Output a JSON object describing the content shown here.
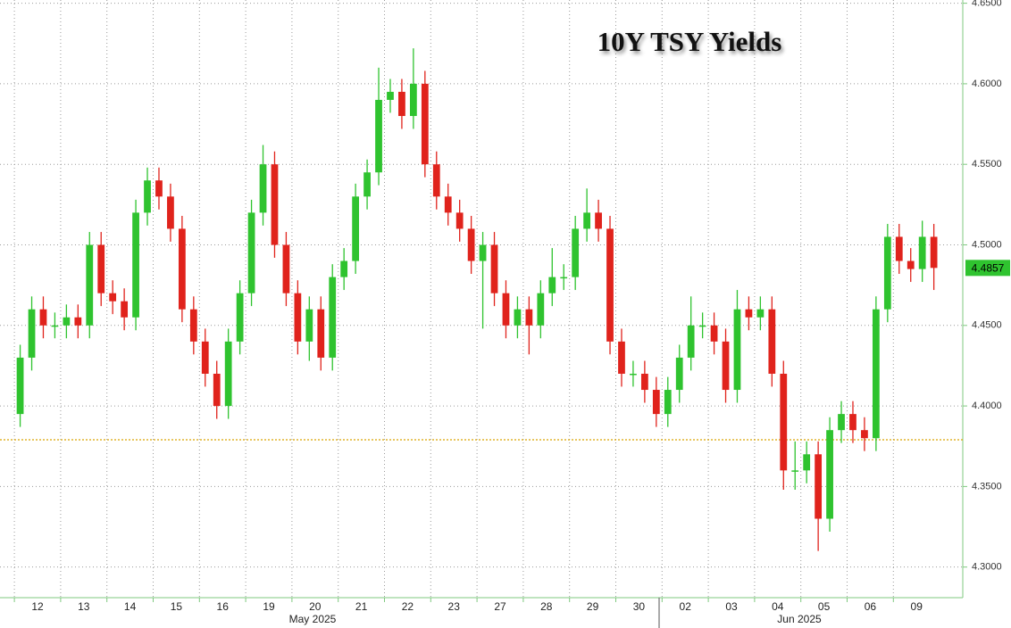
{
  "chart_data": {
    "type": "candlestick",
    "title": "10Y TSY Yields",
    "categories": [
      "12",
      "13",
      "14",
      "15",
      "16",
      "19",
      "20",
      "21",
      "22",
      "23",
      "27",
      "28",
      "29",
      "30",
      "02",
      "03",
      "04",
      "05",
      "06",
      "09"
    ],
    "month_labels": [
      "May 2025",
      "Jun 2025"
    ],
    "open": [
      4.395,
      4.43,
      4.46,
      4.45,
      4.45,
      4.455,
      4.45,
      4.5,
      4.47,
      4.465,
      4.455,
      4.52,
      4.54,
      4.53,
      4.51,
      4.46,
      4.44,
      4.42,
      4.4,
      4.44,
      4.47,
      4.52,
      4.55,
      4.5,
      4.47,
      4.44,
      4.46,
      4.43,
      4.48,
      4.49,
      4.53,
      4.545,
      4.59,
      4.595,
      4.58,
      4.6,
      4.55,
      4.53,
      4.52,
      4.51,
      4.49,
      4.5,
      4.47,
      4.45,
      4.46,
      4.45,
      4.47,
      4.48,
      4.48,
      4.51,
      4.52,
      4.51,
      4.44,
      4.42,
      4.42,
      4.41,
      4.395,
      4.41,
      4.43,
      4.45,
      4.45,
      4.44,
      4.41,
      4.46,
      4.455,
      4.46,
      4.42,
      4.36,
      4.36,
      4.37,
      4.33,
      4.385,
      4.395,
      4.385,
      4.38,
      4.46,
      4.505,
      4.49,
      4.485,
      4.505
    ],
    "high": [
      4.438,
      4.468,
      4.468,
      4.458,
      4.463,
      4.463,
      4.508,
      4.508,
      4.478,
      4.473,
      4.528,
      4.548,
      4.548,
      4.538,
      4.518,
      4.468,
      4.448,
      4.428,
      4.448,
      4.478,
      4.528,
      4.562,
      4.558,
      4.508,
      4.478,
      4.468,
      4.468,
      4.488,
      4.498,
      4.538,
      4.553,
      4.61,
      4.603,
      4.603,
      4.622,
      4.608,
      4.558,
      4.538,
      4.528,
      4.518,
      4.508,
      4.508,
      4.478,
      4.468,
      4.468,
      4.478,
      4.498,
      4.488,
      4.518,
      4.535,
      4.528,
      4.518,
      4.448,
      4.428,
      4.428,
      4.418,
      4.418,
      4.438,
      4.468,
      4.458,
      4.458,
      4.448,
      4.472,
      4.468,
      4.468,
      4.468,
      4.428,
      4.378,
      4.378,
      4.378,
      4.393,
      4.403,
      4.403,
      4.393,
      4.468,
      4.513,
      4.513,
      4.498,
      4.515,
      4.513
    ],
    "low": [
      4.387,
      4.422,
      4.442,
      4.442,
      4.442,
      4.442,
      4.442,
      4.462,
      4.457,
      4.447,
      4.447,
      4.512,
      4.522,
      4.502,
      4.452,
      4.432,
      4.412,
      4.392,
      4.392,
      4.432,
      4.462,
      4.512,
      4.492,
      4.462,
      4.432,
      4.428,
      4.422,
      4.422,
      4.472,
      4.482,
      4.522,
      4.537,
      4.582,
      4.572,
      4.572,
      4.542,
      4.522,
      4.512,
      4.502,
      4.482,
      4.448,
      4.462,
      4.442,
      4.442,
      4.432,
      4.442,
      4.462,
      4.472,
      4.472,
      4.502,
      4.502,
      4.432,
      4.412,
      4.412,
      4.402,
      4.387,
      4.387,
      4.402,
      4.422,
      4.442,
      4.432,
      4.402,
      4.402,
      4.447,
      4.447,
      4.412,
      4.348,
      4.348,
      4.352,
      4.31,
      4.322,
      4.377,
      4.377,
      4.372,
      4.372,
      4.452,
      4.482,
      4.477,
      4.477,
      4.472
    ],
    "close": [
      4.43,
      4.46,
      4.45,
      4.45,
      4.455,
      4.45,
      4.5,
      4.47,
      4.465,
      4.455,
      4.52,
      4.54,
      4.53,
      4.51,
      4.46,
      4.44,
      4.42,
      4.4,
      4.44,
      4.47,
      4.52,
      4.55,
      4.5,
      4.47,
      4.44,
      4.46,
      4.43,
      4.48,
      4.49,
      4.53,
      4.545,
      4.59,
      4.595,
      4.58,
      4.6,
      4.55,
      4.53,
      4.52,
      4.51,
      4.49,
      4.5,
      4.47,
      4.45,
      4.46,
      4.45,
      4.47,
      4.48,
      4.48,
      4.51,
      4.52,
      4.51,
      4.44,
      4.42,
      4.42,
      4.41,
      4.395,
      4.41,
      4.43,
      4.45,
      4.45,
      4.44,
      4.41,
      4.46,
      4.455,
      4.46,
      4.42,
      4.36,
      4.36,
      4.37,
      4.33,
      4.385,
      4.395,
      4.385,
      4.38,
      4.46,
      4.505,
      4.49,
      4.485,
      4.505,
      4.4857
    ],
    "up_color": "#2fc32f",
    "down_color": "#e0231c",
    "reference_line": 4.379,
    "reference_color": "#d9a400",
    "ylim": [
      4.281,
      4.652
    ],
    "yticks": [
      {
        "value": 4.3,
        "label": "4.3000"
      },
      {
        "value": 4.35,
        "label": "4.3500"
      },
      {
        "value": 4.4,
        "label": "4.4000"
      },
      {
        "value": 4.45,
        "label": "4.4500"
      },
      {
        "value": 4.5,
        "label": "4.5000"
      },
      {
        "value": 4.55,
        "label": "4.5500"
      },
      {
        "value": 4.6,
        "label": "4.6000"
      },
      {
        "value": 4.65,
        "label": "4.6500"
      }
    ],
    "grid": true
  }
}
